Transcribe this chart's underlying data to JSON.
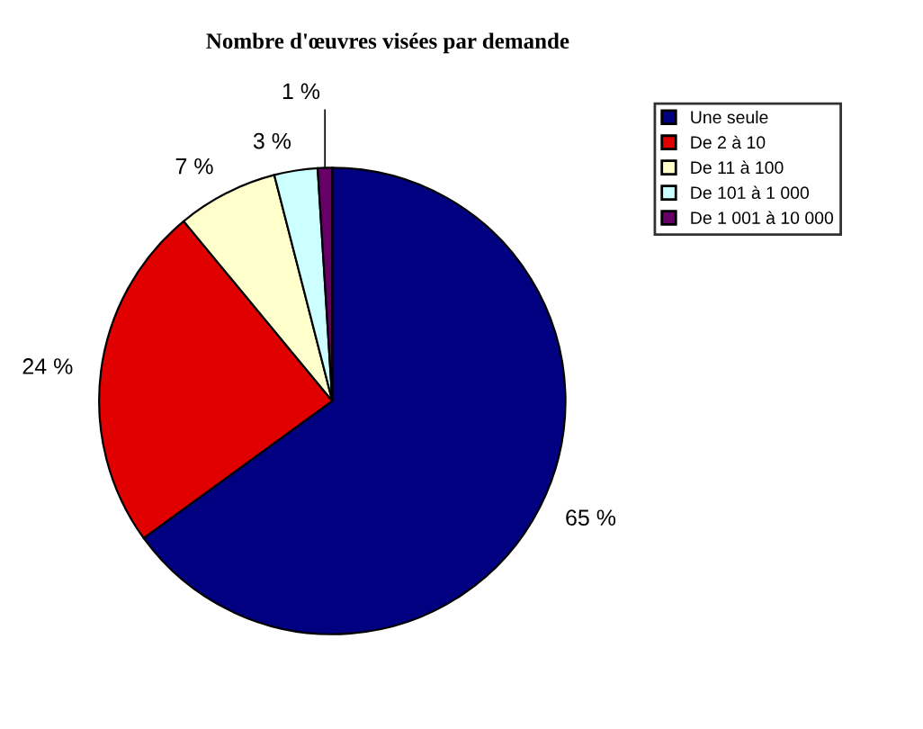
{
  "chart_data": {
    "type": "pie",
    "title": "Nombre d'œuvres visées par demande",
    "categories": [
      "Une seule",
      "De 2 à 10",
      "De 11 à 100",
      "De 101 à 1 000",
      "De 1 001 à 10 000"
    ],
    "values": [
      65,
      24,
      7,
      3,
      1
    ],
    "colors": [
      "#000080",
      "#e00000",
      "#ffffcc",
      "#ccffff",
      "#660066"
    ],
    "value_labels": [
      "65 %",
      "24 %",
      "7 %",
      "3 %",
      "1 %"
    ],
    "legend": "right"
  }
}
